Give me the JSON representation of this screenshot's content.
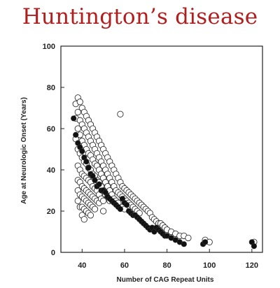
{
  "slide": {
    "title": "Huntington’s disease"
  },
  "chart_data": {
    "type": "scatter",
    "title": "",
    "xlabel": "Number of CAG Repeat Units",
    "ylabel": "Age at Neurologic Onset (Years)",
    "xlim": [
      30,
      125
    ],
    "ylim": [
      0,
      100
    ],
    "xticks": [
      40,
      60,
      80,
      100,
      120
    ],
    "yticks": [
      0,
      20,
      40,
      60,
      80,
      100
    ],
    "grid": false,
    "legend": "none",
    "colors": {
      "open_marker": "#ffffff",
      "filled_marker": "#111111",
      "marker_stroke": "#333333",
      "title": "#b01e1e"
    },
    "series": [
      {
        "marker": "open-circle",
        "x": [
          37,
          37,
          37,
          38,
          38,
          38,
          38,
          38,
          38,
          38,
          38,
          39,
          39,
          39,
          39,
          39,
          39,
          39,
          39,
          40,
          40,
          40,
          40,
          40,
          40,
          40,
          40,
          40,
          41,
          41,
          41,
          41,
          41,
          41,
          41,
          41,
          41,
          42,
          42,
          42,
          42,
          42,
          42,
          42,
          42,
          43,
          43,
          43,
          43,
          43,
          43,
          43,
          43,
          44,
          44,
          44,
          44,
          44,
          44,
          44,
          44,
          45,
          45,
          45,
          45,
          45,
          45,
          45,
          46,
          46,
          46,
          46,
          46,
          46,
          46,
          47,
          47,
          47,
          47,
          47,
          47,
          48,
          48,
          48,
          48,
          48,
          48,
          49,
          49,
          49,
          49,
          49,
          50,
          50,
          50,
          50,
          50,
          50,
          51,
          51,
          51,
          51,
          52,
          52,
          52,
          52,
          53,
          53,
          53,
          53,
          54,
          54,
          54,
          55,
          55,
          55,
          56,
          56,
          56,
          57,
          57,
          57,
          58,
          58,
          58,
          59,
          59,
          59,
          60,
          60,
          60,
          61,
          61,
          62,
          62,
          63,
          63,
          64,
          64,
          65,
          65,
          66,
          66,
          67,
          67,
          68,
          69,
          70,
          71,
          72,
          73,
          74,
          75,
          76,
          77,
          78,
          79,
          80,
          82,
          84,
          86,
          88,
          90,
          98,
          100,
          121
        ],
        "y": [
          72,
          65,
          55,
          75,
          68,
          60,
          50,
          42,
          35,
          30,
          25,
          73,
          64,
          57,
          48,
          40,
          34,
          28,
          22,
          70,
          62,
          54,
          46,
          38,
          32,
          27,
          22,
          18,
          68,
          60,
          52,
          44,
          37,
          31,
          26,
          21,
          16,
          66,
          58,
          50,
          43,
          36,
          30,
          25,
          20,
          64,
          56,
          48,
          41,
          35,
          29,
          24,
          19,
          62,
          54,
          47,
          40,
          34,
          28,
          23,
          18,
          60,
          52,
          45,
          38,
          32,
          27,
          22,
          58,
          50,
          43,
          37,
          31,
          26,
          21,
          56,
          48,
          42,
          35,
          30,
          25,
          54,
          46,
          40,
          34,
          28,
          24,
          52,
          44,
          38,
          32,
          26,
          50,
          42,
          36,
          30,
          25,
          20,
          48,
          40,
          34,
          28,
          46,
          38,
          32,
          27,
          44,
          36,
          30,
          25,
          42,
          34,
          28,
          40,
          32,
          26,
          38,
          30,
          25,
          36,
          29,
          24,
          67,
          34,
          28,
          32,
          27,
          22,
          31,
          26,
          21,
          30,
          25,
          29,
          24,
          28,
          23,
          27,
          22,
          26,
          21,
          25,
          20,
          24,
          19,
          23,
          22,
          21,
          20,
          19,
          17,
          16,
          15,
          14,
          14,
          13,
          12,
          11,
          10,
          9,
          8,
          8,
          7,
          6,
          5,
          5
        ]
      },
      {
        "marker": "filled-circle",
        "x": [
          36,
          37,
          38,
          39,
          40,
          41,
          42,
          43,
          44,
          45,
          46,
          47,
          48,
          49,
          50,
          51,
          52,
          53,
          54,
          55,
          56,
          57,
          58,
          59,
          60,
          61,
          62,
          63,
          64,
          65,
          66,
          67,
          68,
          69,
          70,
          71,
          72,
          73,
          74,
          75,
          76,
          77,
          78,
          79,
          80,
          82,
          84,
          86,
          88,
          97,
          98,
          120,
          121
        ],
        "y": [
          65,
          57,
          53,
          51,
          49,
          46,
          44,
          41,
          38,
          37,
          35,
          32,
          33,
          30,
          30,
          29,
          27,
          26,
          25,
          24,
          23,
          22,
          21,
          26,
          24,
          23,
          20,
          19,
          18,
          18,
          17,
          16,
          15,
          14,
          13,
          12,
          11,
          12,
          10,
          12,
          11,
          10,
          9,
          8,
          8,
          7,
          6,
          5,
          4,
          4,
          5,
          5,
          3
        ]
      }
    ]
  }
}
